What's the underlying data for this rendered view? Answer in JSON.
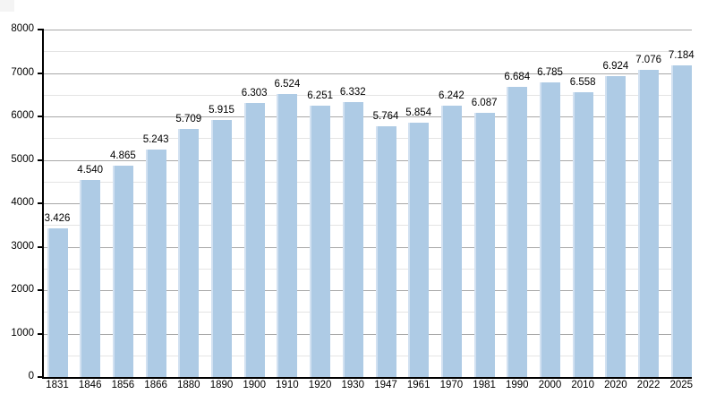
{
  "page": {
    "background": "#ffffff"
  },
  "chart_data": {
    "type": "bar",
    "title": "",
    "xlabel": "",
    "ylabel": "",
    "categories": [
      "1831",
      "1846",
      "1856",
      "1866",
      "1880",
      "1890",
      "1900",
      "1910",
      "1920",
      "1930",
      "1947",
      "1961",
      "1970",
      "1981",
      "1990",
      "2000",
      "2010",
      "2020",
      "2022",
      "2025"
    ],
    "values": [
      3426,
      4540,
      4865,
      5243,
      5709,
      5915,
      6303,
      6524,
      6251,
      6332,
      5764,
      5854,
      6242,
      6087,
      6684,
      6785,
      6558,
      6924,
      7076,
      7184
    ],
    "value_labels": [
      "3.426",
      "4.540",
      "4.865",
      "5.243",
      "5.709",
      "5.915",
      "6.303",
      "6.524",
      "6.251",
      "6.332",
      "5.764",
      "5.854",
      "6.242",
      "6.087",
      "6.684",
      "6.785",
      "6.558",
      "6.924",
      "7.076",
      "7.184"
    ],
    "ylim": [
      0,
      8000
    ],
    "y_major_ticks": [
      0,
      1000,
      2000,
      3000,
      4000,
      5000,
      6000,
      7000,
      8000
    ],
    "y_tick_labels": [
      "0",
      "1000",
      "2000",
      "3000",
      "4000",
      "5000",
      "6000",
      "7000",
      "8000"
    ],
    "y_minor_step": 500,
    "grid": "major and minor horizontal gridlines, bars drawn on top",
    "legend": "none",
    "colors": {
      "bar_fill": "#aecbe5",
      "bar_left_highlight": "#d2e1f1",
      "major_gridline": "#a8a8a8",
      "minor_gridline": "#e4e4e4",
      "axis": "#000000",
      "text": "#000000"
    }
  }
}
